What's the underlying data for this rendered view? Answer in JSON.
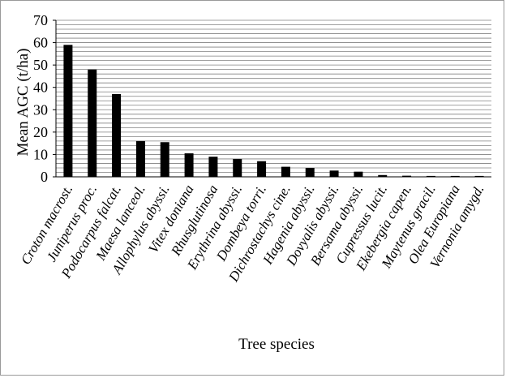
{
  "chart_data": {
    "type": "bar",
    "title": "",
    "xlabel": "Tree species",
    "ylabel": "Mean AGC (t/ha)",
    "ylim": [
      0,
      70
    ],
    "y_ticks": [
      0,
      10,
      20,
      30,
      40,
      50,
      60,
      70
    ],
    "grid": true,
    "legend": "none",
    "bar_color": "#000000",
    "gridline_color": "#808080",
    "categories": [
      "Croton macrost.",
      "Juniperus proc.",
      "Podocarpus falcat.",
      "Maesa lanceol.",
      "Allophylus abyssi.",
      "Vitex doniana",
      "Rhusglutinosa",
      "Erythrina abyssi.",
      "Dombeya torri.",
      "Dichrostachys cine.",
      "Hagenia abyssi.",
      "Dovyalis abyssi.",
      "Bersama abyssi.",
      "Cupressus lucit.",
      "Ekebergia capen.",
      "Maytenus gracil.",
      "Olea Europiana",
      "Vernonia amygd."
    ],
    "values": [
      59,
      48,
      37,
      16,
      15.5,
      10.5,
      9,
      8,
      7,
      4.5,
      4,
      2.8,
      2.3,
      0.8,
      0.5,
      0.4,
      0.4,
      0.4
    ]
  }
}
